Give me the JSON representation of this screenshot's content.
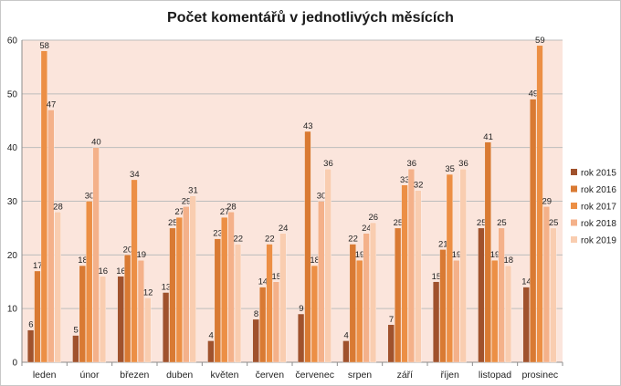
{
  "chart_data": {
    "type": "bar",
    "title": "Počet komentářů v jednotlivých měsících",
    "xlabel": "",
    "ylabel": "",
    "ylim": [
      0,
      60
    ],
    "yticks": [
      0,
      10,
      20,
      30,
      40,
      50,
      60
    ],
    "grid": true,
    "legend_position": "right",
    "categories": [
      "leden",
      "únor",
      "březen",
      "duben",
      "květen",
      "červen",
      "červenec",
      "srpen",
      "září",
      "říjen",
      "listopad",
      "prosinec"
    ],
    "series": [
      {
        "name": "rok 2015",
        "color": "#a0522d",
        "values": [
          6,
          5,
          16,
          13,
          4,
          8,
          9,
          4,
          7,
          15,
          25,
          14
        ]
      },
      {
        "name": "rok 2016",
        "color": "#d97a33",
        "values": [
          17,
          18,
          20,
          25,
          23,
          14,
          43,
          22,
          25,
          21,
          41,
          49
        ]
      },
      {
        "name": "rok 2017",
        "color": "#ec8f45",
        "values": [
          58,
          30,
          34,
          27,
          27,
          22,
          18,
          19,
          33,
          35,
          19,
          59
        ]
      },
      {
        "name": "rok 2018",
        "color": "#f4b18a",
        "values": [
          47,
          40,
          19,
          29,
          28,
          15,
          30,
          24,
          36,
          19,
          25,
          29
        ]
      },
      {
        "name": "rok 2019",
        "color": "#f9cdb0",
        "values": [
          28,
          16,
          12,
          31,
          22,
          24,
          36,
          26,
          32,
          36,
          18,
          25
        ]
      }
    ],
    "plot_background": "#fbe5dc"
  }
}
